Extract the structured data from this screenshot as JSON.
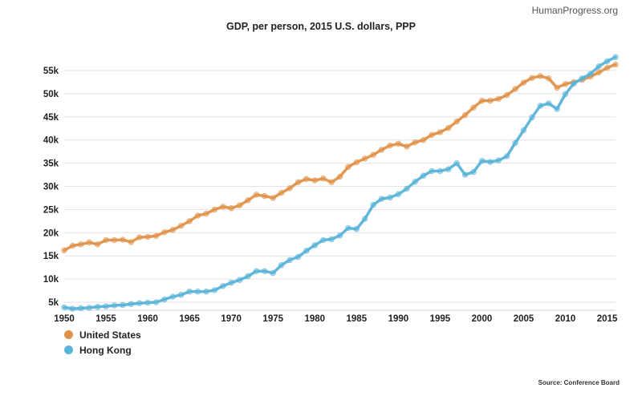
{
  "brand": "HumanProgress.org",
  "source": "Source: Conference Board",
  "chart_data": {
    "type": "line",
    "title": "GDP, per person, 2015 U.S. dollars, PPP",
    "xlabel": "",
    "ylabel": "",
    "xlim": [
      1950,
      2016
    ],
    "ylim": [
      4000,
      60000
    ],
    "x_ticks": [
      1950,
      1955,
      1960,
      1965,
      1970,
      1975,
      1980,
      1985,
      1990,
      1995,
      2000,
      2005,
      2010,
      2015
    ],
    "y_ticks": [
      5000,
      10000,
      15000,
      20000,
      25000,
      30000,
      35000,
      40000,
      45000,
      50000,
      55000
    ],
    "y_tick_labels": [
      "5k",
      "10k",
      "15k",
      "20k",
      "25k",
      "30k",
      "35k",
      "40k",
      "45k",
      "50k",
      "55k"
    ],
    "grid": "horizontal",
    "legend_position": "bottom-left",
    "x": [
      1950,
      1951,
      1952,
      1953,
      1954,
      1955,
      1956,
      1957,
      1958,
      1959,
      1960,
      1961,
      1962,
      1963,
      1964,
      1965,
      1966,
      1967,
      1968,
      1969,
      1970,
      1971,
      1972,
      1973,
      1974,
      1975,
      1976,
      1977,
      1978,
      1979,
      1980,
      1981,
      1982,
      1983,
      1984,
      1985,
      1986,
      1987,
      1988,
      1989,
      1990,
      1991,
      1992,
      1993,
      1994,
      1995,
      1996,
      1997,
      1998,
      1999,
      2000,
      2001,
      2002,
      2003,
      2004,
      2005,
      2006,
      2007,
      2008,
      2009,
      2010,
      2011,
      2012,
      2013,
      2014,
      2015,
      2016
    ],
    "series": [
      {
        "name": "United States",
        "color": "#e0924a",
        "values": [
          16200,
          17200,
          17500,
          17900,
          17500,
          18400,
          18400,
          18500,
          18000,
          19000,
          19100,
          19300,
          20100,
          20600,
          21500,
          22500,
          23700,
          24100,
          25000,
          25600,
          25300,
          25900,
          27000,
          28200,
          27900,
          27500,
          28600,
          29600,
          30900,
          31600,
          31300,
          31700,
          30900,
          32100,
          34200,
          35200,
          36000,
          36800,
          37900,
          38800,
          39200,
          38600,
          39500,
          40000,
          41100,
          41700,
          42600,
          44000,
          45400,
          47000,
          48500,
          48500,
          48900,
          49700,
          51000,
          52400,
          53400,
          53800,
          53300,
          51300,
          52100,
          52500,
          53000,
          53700,
          54600,
          55600,
          56300
        ]
      },
      {
        "name": "Hong Kong",
        "color": "#58b4d8",
        "values": [
          3900,
          3600,
          3700,
          3800,
          4000,
          4100,
          4300,
          4400,
          4600,
          4800,
          4900,
          5000,
          5600,
          6200,
          6600,
          7300,
          7300,
          7300,
          7600,
          8500,
          9200,
          9800,
          10600,
          11700,
          11700,
          11300,
          13000,
          14100,
          14800,
          16100,
          17300,
          18400,
          18600,
          19400,
          21000,
          20800,
          23000,
          26000,
          27300,
          27600,
          28300,
          29500,
          31000,
          32300,
          33300,
          33300,
          33700,
          35000,
          32500,
          33100,
          35500,
          35300,
          35600,
          36500,
          39400,
          42100,
          44900,
          47400,
          47900,
          46700,
          49900,
          52200,
          53300,
          54300,
          55900,
          57000,
          57900
        ]
      }
    ]
  }
}
